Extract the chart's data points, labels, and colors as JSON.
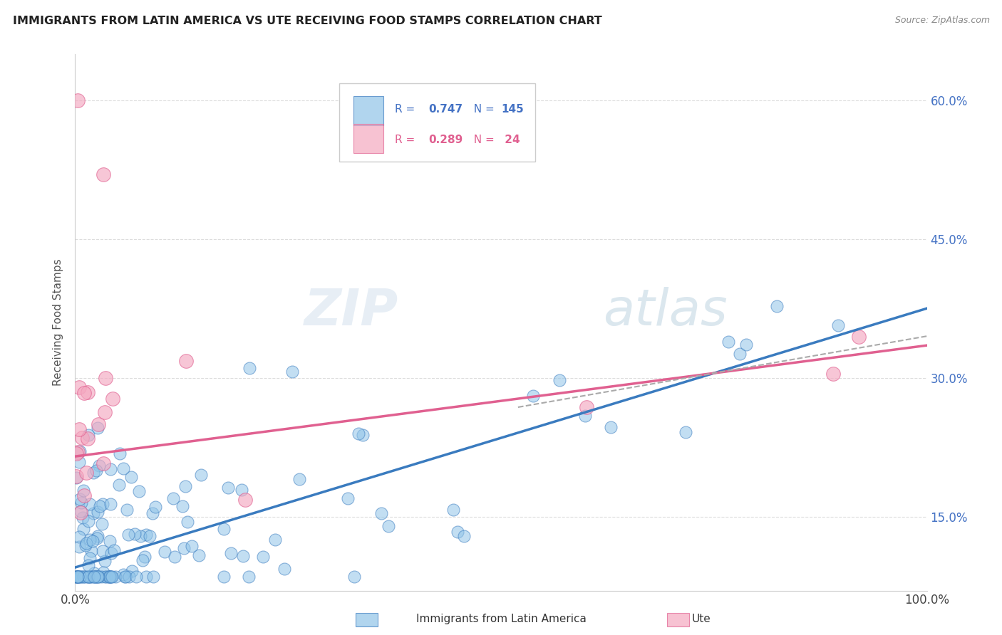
{
  "title": "IMMIGRANTS FROM LATIN AMERICA VS UTE RECEIVING FOOD STAMPS CORRELATION CHART",
  "source": "Source: ZipAtlas.com",
  "ylabel": "Receiving Food Stamps",
  "color_blue": "#90c4e8",
  "color_pink": "#f4a8c0",
  "color_blue_dark": "#3a7bbf",
  "color_pink_dark": "#e06090",
  "color_dashed": "#aaaaaa",
  "background": "#ffffff",
  "xlim": [
    0.0,
    1.0
  ],
  "ylim": [
    0.07,
    0.65
  ],
  "yticks": [
    0.15,
    0.3,
    0.45,
    0.6
  ],
  "ytick_labels": [
    "15.0%",
    "30.0%",
    "45.0%",
    "60.0%"
  ],
  "xticks": [
    0.0,
    1.0
  ],
  "xtick_labels": [
    "0.0%",
    "100.0%"
  ],
  "blue_intercept": 0.095,
  "blue_slope": 0.28,
  "pink_intercept": 0.215,
  "pink_slope": 0.12,
  "legend_R_blue": "0.747",
  "legend_N_blue": "145",
  "legend_R_pink": "0.289",
  "legend_N_pink": " 24"
}
